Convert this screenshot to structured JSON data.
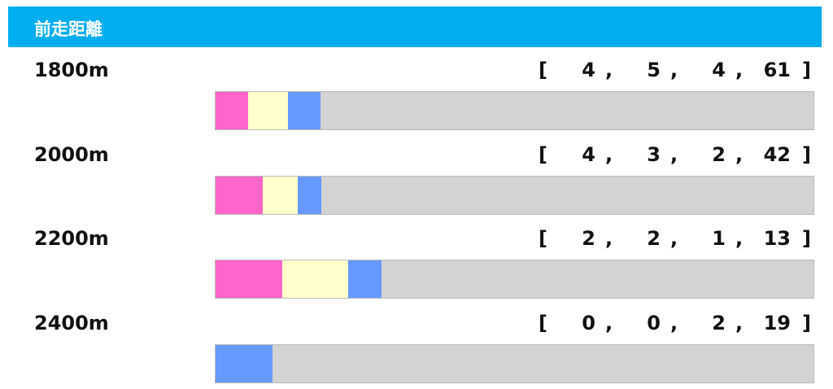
{
  "header": {
    "title": "前走距離"
  },
  "bracket_open": "[",
  "bracket_close": "]",
  "separator": ",",
  "colors": [
    "#ff66cc",
    "#ffffcc",
    "#6699ff",
    "#d3d3d3"
  ],
  "rows": [
    {
      "label": "1800m",
      "counts": [
        4,
        5,
        4,
        61
      ]
    },
    {
      "label": "2000m",
      "counts": [
        4,
        3,
        2,
        42
      ]
    },
    {
      "label": "2200m",
      "counts": [
        2,
        2,
        1,
        13
      ]
    },
    {
      "label": "2400m",
      "counts": [
        0,
        0,
        2,
        19
      ]
    }
  ]
}
